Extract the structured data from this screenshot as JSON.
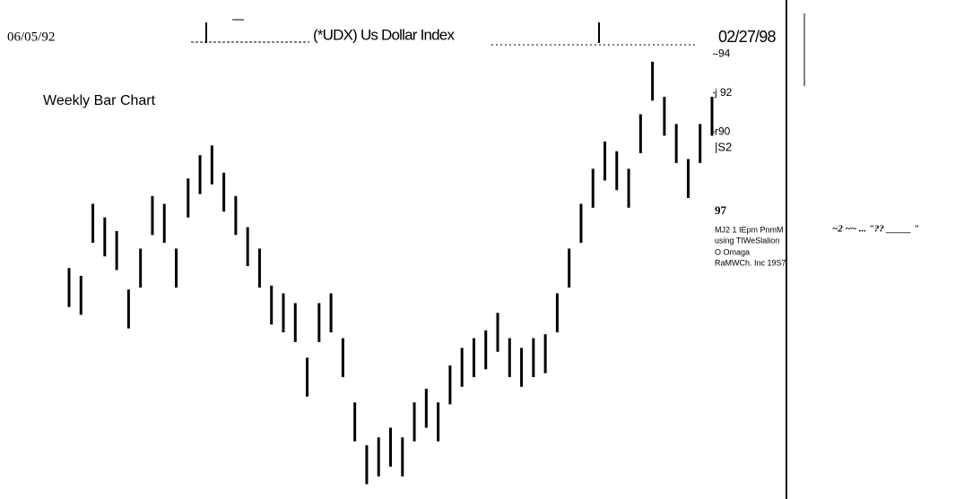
{
  "chart_data": {
    "type": "ohlc",
    "title": "(*UDX) Us Dollar Index",
    "subtitle": "Weekly Bar Chart",
    "start_date": "06/05/92",
    "end_date": "02/27/98",
    "color": "#000000",
    "grid": false,
    "ylim": [
      71,
      97
    ],
    "yticks": [
      {
        "value": 94,
        "label": "-94"
      },
      {
        "value": 92,
        "label": "j 92"
      },
      {
        "value": 90,
        "label": "r90"
      }
    ],
    "annotations": [
      "|S2",
      "97",
      "MJ2 1 IEpm PnmM",
      "using TIWeSlalion",
      "O Omaga",
      "RaMWCh. Inc 19S7",
      "~2 ~~ ... \"?? _____ \""
    ],
    "high": [
      83.0,
      82.6,
      86.3,
      85.6,
      84.9,
      81.9,
      84.0,
      86.7,
      86.3,
      84.0,
      87.6,
      88.8,
      89.3,
      87.9,
      86.7,
      85.1,
      84.0,
      82.1,
      81.7,
      81.2,
      78.4,
      81.2,
      81.7,
      79.4,
      76.1,
      73.9,
      74.3,
      74.8,
      74.3,
      76.1,
      76.8,
      76.1,
      78.0,
      78.9,
      79.4,
      79.8,
      80.7,
      79.4,
      78.9,
      79.4,
      79.6,
      81.7,
      84.0,
      86.3,
      88.1,
      89.5,
      89.0,
      88.1,
      90.9,
      93.6,
      91.8,
      90.4,
      88.6,
      90.4,
      91.8
    ],
    "low": [
      81.0,
      80.6,
      84.3,
      83.6,
      82.9,
      79.9,
      82.0,
      84.7,
      84.3,
      82.0,
      85.6,
      86.8,
      87.3,
      85.9,
      84.7,
      83.1,
      82.0,
      80.1,
      79.7,
      79.2,
      76.4,
      79.2,
      79.7,
      77.4,
      74.1,
      71.9,
      72.3,
      72.8,
      72.3,
      74.1,
      74.8,
      74.1,
      76.0,
      76.9,
      77.4,
      77.8,
      78.7,
      77.4,
      76.9,
      77.4,
      77.6,
      79.7,
      82.0,
      84.3,
      86.1,
      87.5,
      87.0,
      86.1,
      88.9,
      91.6,
      89.8,
      88.4,
      86.6,
      88.4,
      89.8
    ]
  }
}
